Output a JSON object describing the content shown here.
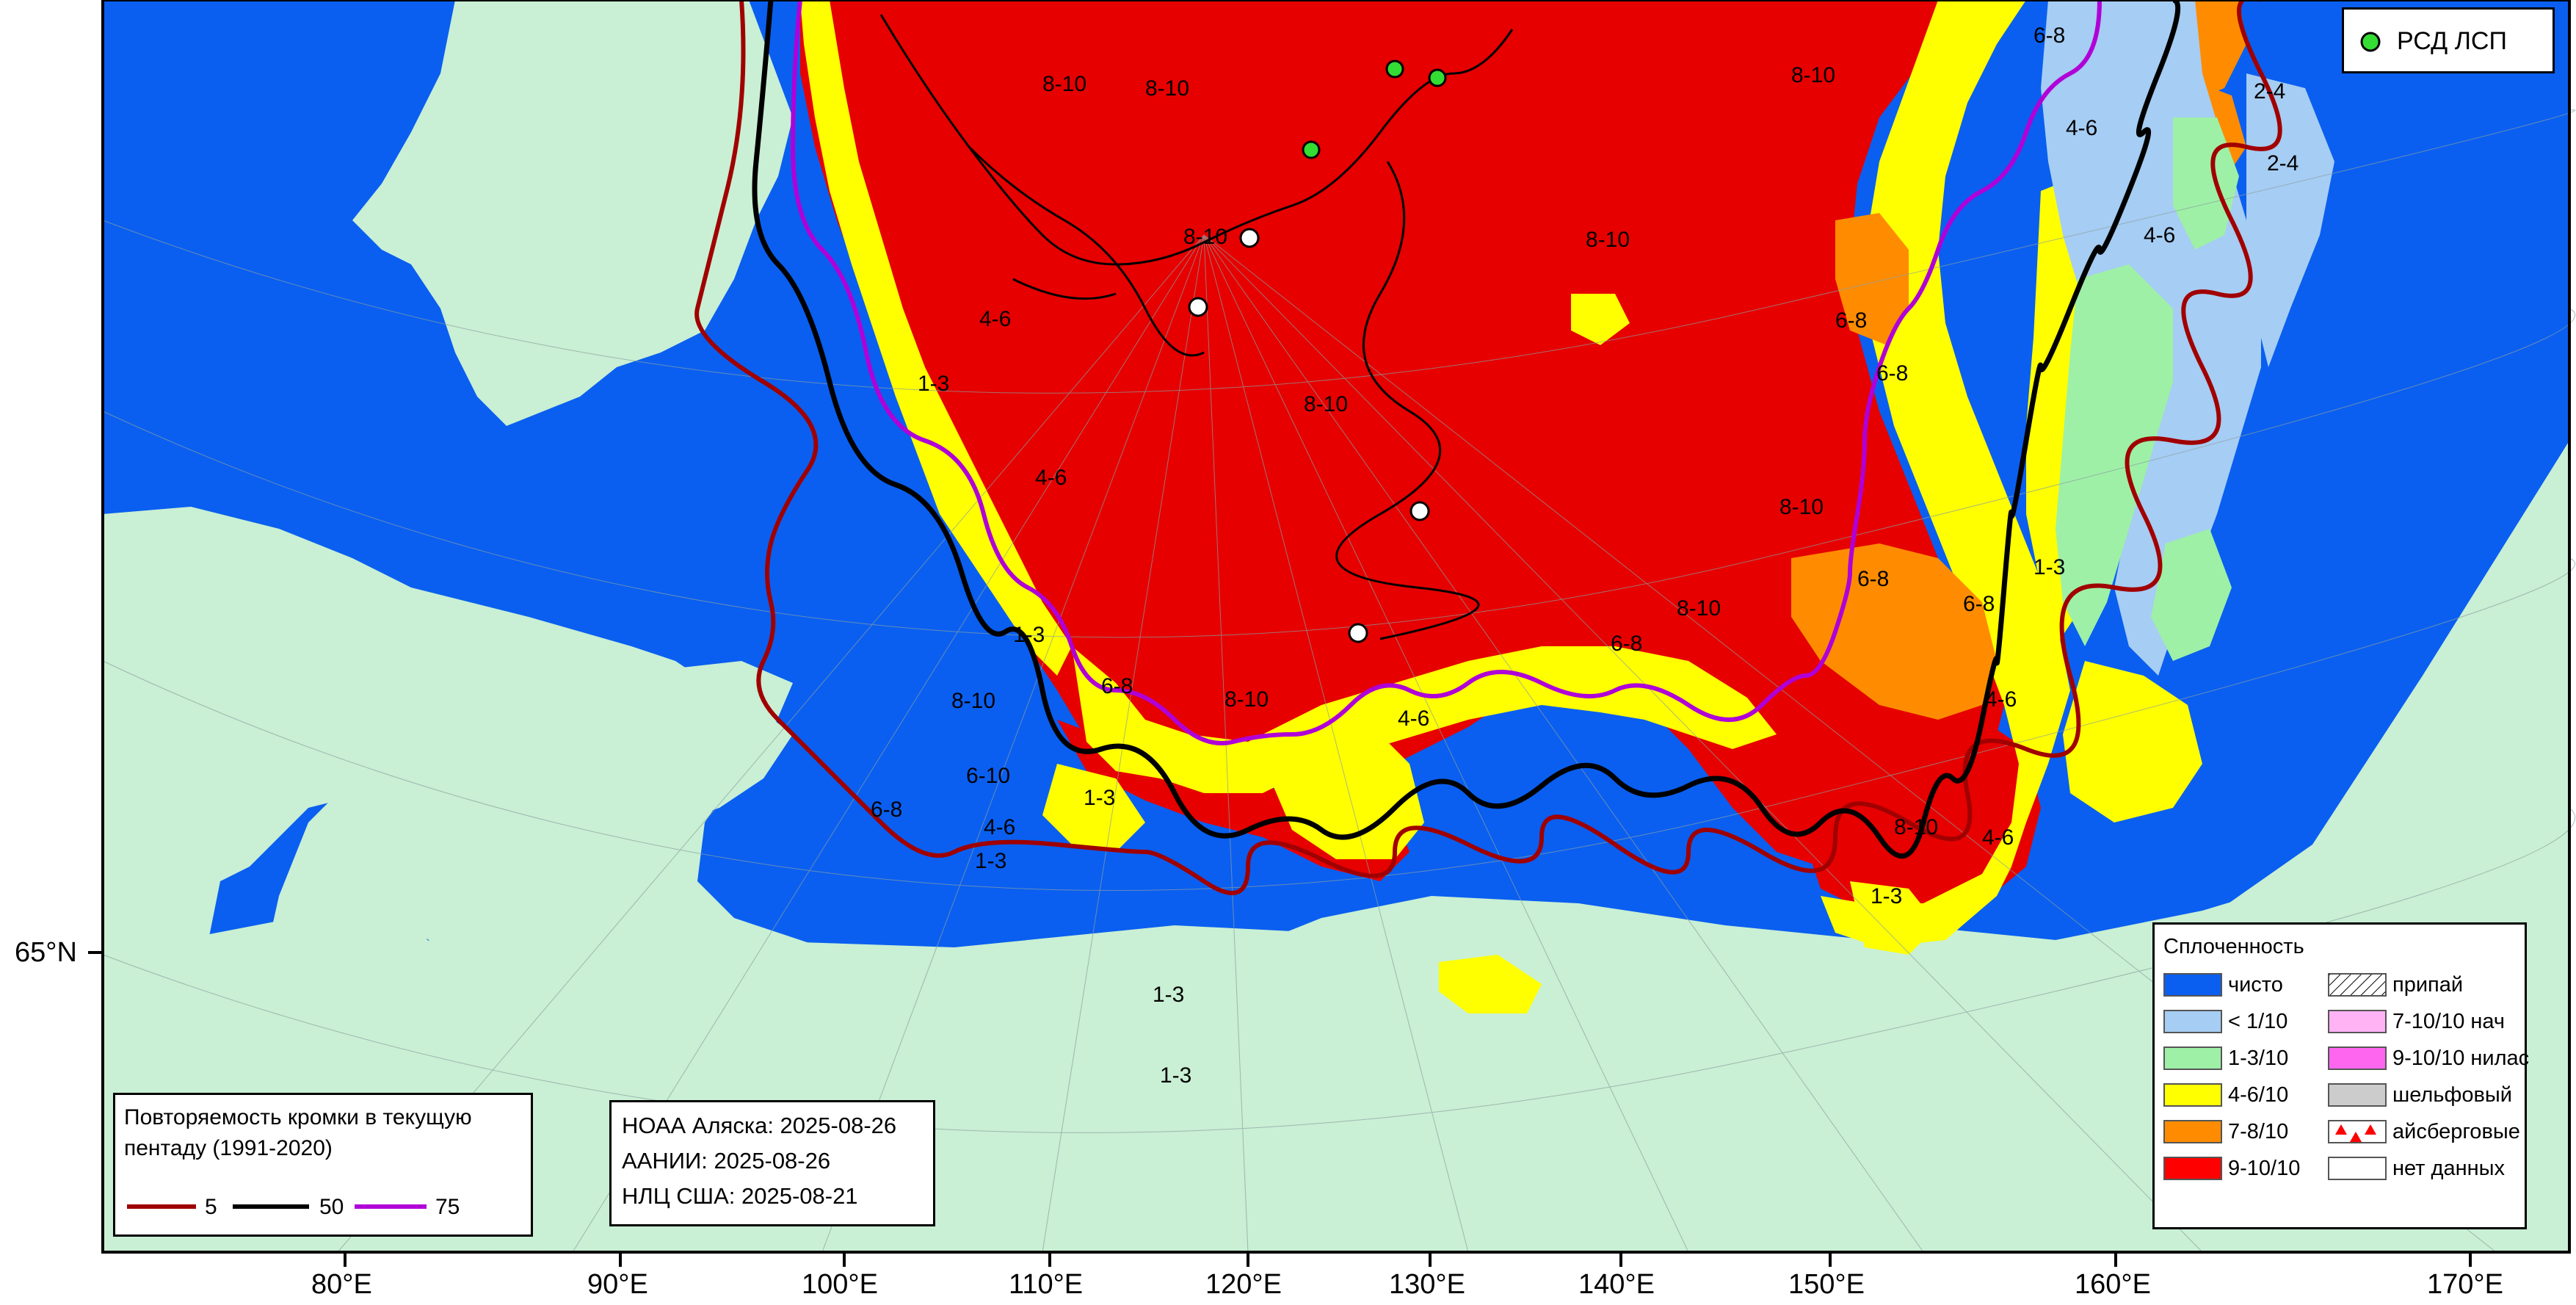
{
  "map": {
    "lon_labels": [
      "80°E",
      "90°E",
      "100°E",
      "110°E",
      "120°E",
      "130°E",
      "140°E",
      "150°E",
      "160°E",
      "170°E"
    ],
    "lat_labels": [
      "65°N"
    ],
    "region_labels": [
      "8-10",
      "8-10",
      "8-10",
      "8-10",
      "8-10",
      "8-10",
      "8-10",
      "8-10",
      "8-10",
      "6-8",
      "6-8",
      "6-8",
      "6-8",
      "6-8",
      "6-8",
      "6-8",
      "4-6",
      "4-6",
      "4-6",
      "4-6",
      "4-6",
      "4-6",
      "4-6",
      "1-3",
      "1-3",
      "1-3",
      "1-3",
      "1-3",
      "1-3",
      "1-3",
      "2-4",
      "2-4",
      "6-10",
      "4-6",
      "1-3",
      "8-10",
      "6-8",
      "8-10"
    ],
    "colors": {
      "land": "#c9efd4",
      "water_clear": "#0a5ff0",
      "ice_lt1": "#a6cdf3",
      "ice_1_3": "#9ef0a6",
      "ice_4_6": "#ffff00",
      "ice_7_8": "#ff8c00",
      "ice_9_10": "#e60000",
      "edge_5": "#a00000",
      "edge_50": "#000000",
      "edge_75": "#b000d8"
    }
  },
  "rsd_legend": {
    "label": "РСД ЛСП"
  },
  "sources": {
    "line1": "НОАА Аляска: 2025-08-26",
    "line2": "ААНИИ: 2025-08-26",
    "line3": "НЛЦ США: 2025-08-21"
  },
  "edge_legend": {
    "title_line1": "Повторяемость кромки в текущую",
    "title_line2": "пентаду (1991-2020)",
    "items": [
      {
        "label": "5",
        "color": "#a00000"
      },
      {
        "label": "50",
        "color": "#000000"
      },
      {
        "label": "75",
        "color": "#b000d8"
      }
    ]
  },
  "concentration_legend": {
    "title": "Сплоченность",
    "left": [
      {
        "label": "чисто",
        "color": "#0a5ff0"
      },
      {
        "label": "< 1/10",
        "color": "#a6cdf3"
      },
      {
        "label": "1-3/10",
        "color": "#9ef0a6"
      },
      {
        "label": "4-6/10",
        "color": "#ffff00"
      },
      {
        "label": "7-8/10",
        "color": "#ff8c00"
      },
      {
        "label": "9-10/10",
        "color": "#ff0000"
      }
    ],
    "right": [
      {
        "label": "припай",
        "color": "#ffffff",
        "icon": "hatch-icon"
      },
      {
        "label": "7-10/10 нач",
        "color": "#ffb3f5",
        "icon": ""
      },
      {
        "label": "9-10/10 нилас",
        "color": "#ff66f0",
        "icon": ""
      },
      {
        "label": "шельфовый",
        "color": "#cccccc",
        "icon": ""
      },
      {
        "label": "айсберговые",
        "color": "#ffffff",
        "icon": "iceberg-triangles-icon"
      },
      {
        "label": "нет данных",
        "color": "#ffffff",
        "icon": ""
      }
    ]
  }
}
